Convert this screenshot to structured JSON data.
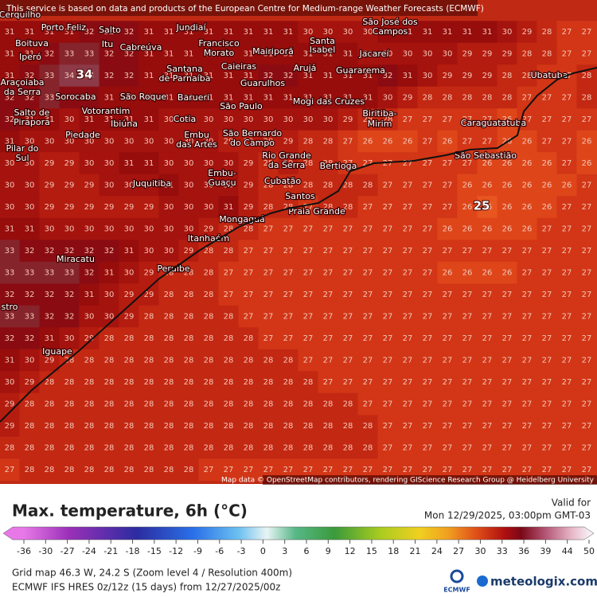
{
  "header": {
    "notice": "This service is based on data and products of the European Centre for Medium-range Weather Forecasts (ECMWF)"
  },
  "map": {
    "attribution": "Map data © OpenStreetMap contributors, rendering GIScience Research Group @ Heidelberg University",
    "extremes": [
      "34",
      "25"
    ],
    "places": [
      "Cerquilho",
      "Porto Feliz",
      "Salto",
      "Jundiaí",
      "São José dos",
      "Campos",
      "Boituva",
      "Itu",
      "Cabreúva",
      "Francisco",
      "Morato",
      "Mairiporã",
      "Santa",
      "Isabel",
      "Jacareí",
      "Iperó",
      "Caieiras",
      "Arujá",
      "Guararema",
      "Santana",
      "de Parnaíba",
      "Ubatuba",
      "Araçoiaba",
      "da Serra",
      "Guarulhos",
      "Sorocaba",
      "São Roque",
      "Barueri",
      "Mogi das Cruzes",
      "São Paulo",
      "Votorantim",
      "Salto de",
      "Pirapora",
      "Ibiúna",
      "Cotia",
      "Biritiba-",
      "Mirim",
      "Caraguatatuba",
      "Embu",
      "das Artes",
      "São Bernardo",
      "do Campo",
      "Piedade",
      "Pilar do",
      "Sul",
      "São Sebastião",
      "Rio Grande",
      "da Serra",
      "Bertioga",
      "Embu-",
      "Guaçu",
      "Juquitiba",
      "Cubatão",
      "Santos",
      "Praia Grande",
      "Mongaguá",
      "Itanhaém",
      "Miracatu",
      "Peruíbe",
      "stro",
      "Iguape"
    ],
    "grid_values": [
      [
        31,
        31,
        31,
        31,
        32,
        32,
        32,
        31,
        31,
        31,
        31,
        31,
        31,
        31,
        31,
        30,
        30,
        30,
        30,
        31,
        31,
        31,
        31,
        31,
        31,
        30,
        29,
        28,
        27,
        27
      ],
      [
        31,
        31,
        32,
        33,
        33,
        32,
        32,
        31,
        31,
        31,
        31,
        31,
        31,
        31,
        31,
        31,
        31,
        31,
        30,
        30,
        30,
        30,
        30,
        29,
        29,
        29,
        28,
        28,
        27,
        27
      ],
      [
        31,
        32,
        33,
        34,
        34,
        32,
        32,
        31,
        31,
        31,
        31,
        31,
        31,
        32,
        32,
        31,
        31,
        31,
        31,
        32,
        31,
        30,
        29,
        29,
        29,
        28,
        28,
        27,
        27,
        28
      ],
      [
        32,
        32,
        33,
        32,
        32,
        31,
        31,
        31,
        31,
        31,
        31,
        31,
        31,
        31,
        31,
        31,
        31,
        31,
        31,
        30,
        29,
        28,
        28,
        28,
        28,
        28,
        27,
        27,
        27,
        28
      ],
      [
        32,
        31,
        31,
        30,
        31,
        31,
        31,
        31,
        30,
        30,
        30,
        30,
        30,
        30,
        30,
        30,
        30,
        29,
        28,
        28,
        27,
        27,
        27,
        27,
        27,
        26,
        27,
        27,
        27,
        27
      ],
      [
        31,
        30,
        30,
        30,
        30,
        30,
        30,
        30,
        30,
        30,
        30,
        29,
        29,
        29,
        29,
        28,
        28,
        27,
        26,
        26,
        26,
        27,
        26,
        27,
        27,
        26,
        26,
        27,
        27,
        26
      ],
      [
        30,
        30,
        29,
        29,
        30,
        30,
        31,
        31,
        30,
        30,
        30,
        30,
        29,
        28,
        29,
        28,
        28,
        27,
        27,
        27,
        27,
        27,
        27,
        27,
        26,
        26,
        26,
        26,
        27,
        26
      ],
      [
        30,
        30,
        29,
        29,
        29,
        30,
        30,
        30,
        31,
        30,
        30,
        30,
        29,
        28,
        28,
        28,
        28,
        28,
        28,
        27,
        27,
        27,
        27,
        26,
        26,
        26,
        26,
        26,
        26,
        27
      ],
      [
        30,
        30,
        29,
        29,
        29,
        29,
        29,
        29,
        30,
        30,
        30,
        31,
        29,
        28,
        28,
        27,
        28,
        28,
        27,
        27,
        27,
        27,
        27,
        26,
        25,
        26,
        26,
        26,
        27,
        27
      ],
      [
        31,
        31,
        30,
        30,
        30,
        30,
        30,
        30,
        30,
        30,
        29,
        28,
        28,
        27,
        27,
        27,
        27,
        27,
        27,
        27,
        27,
        27,
        26,
        26,
        26,
        26,
        26,
        27,
        27,
        27
      ],
      [
        33,
        32,
        32,
        32,
        32,
        32,
        31,
        30,
        30,
        29,
        28,
        28,
        27,
        27,
        27,
        27,
        27,
        27,
        27,
        27,
        27,
        27,
        27,
        27,
        27,
        27,
        27,
        27,
        27,
        27
      ],
      [
        33,
        33,
        33,
        33,
        32,
        31,
        30,
        29,
        28,
        28,
        28,
        27,
        27,
        27,
        27,
        27,
        27,
        27,
        27,
        27,
        27,
        27,
        26,
        26,
        26,
        26,
        27,
        27,
        27,
        27
      ],
      [
        32,
        32,
        32,
        32,
        31,
        30,
        29,
        29,
        28,
        28,
        28,
        27,
        27,
        27,
        27,
        27,
        27,
        27,
        27,
        27,
        27,
        27,
        27,
        27,
        27,
        27,
        27,
        27,
        27,
        27
      ],
      [
        33,
        33,
        32,
        32,
        30,
        30,
        29,
        28,
        28,
        28,
        28,
        28,
        27,
        27,
        27,
        27,
        27,
        27,
        27,
        27,
        27,
        27,
        27,
        27,
        27,
        27,
        27,
        27,
        27,
        27
      ],
      [
        32,
        32,
        31,
        30,
        29,
        28,
        28,
        28,
        28,
        28,
        28,
        28,
        28,
        27,
        27,
        27,
        27,
        27,
        27,
        27,
        27,
        27,
        27,
        27,
        27,
        27,
        27,
        27,
        27,
        27
      ],
      [
        31,
        30,
        29,
        28,
        28,
        28,
        28,
        28,
        28,
        28,
        28,
        28,
        28,
        28,
        28,
        27,
        27,
        27,
        27,
        27,
        27,
        27,
        27,
        27,
        27,
        27,
        27,
        27,
        27,
        27
      ],
      [
        30,
        29,
        28,
        28,
        28,
        28,
        28,
        28,
        28,
        28,
        28,
        28,
        28,
        28,
        28,
        28,
        27,
        27,
        27,
        27,
        27,
        27,
        27,
        27,
        27,
        27,
        27,
        27,
        27,
        27
      ],
      [
        29,
        28,
        28,
        28,
        28,
        28,
        28,
        28,
        28,
        28,
        28,
        28,
        28,
        28,
        28,
        28,
        28,
        28,
        27,
        27,
        27,
        27,
        27,
        27,
        27,
        27,
        27,
        27,
        27,
        27
      ],
      [
        29,
        28,
        28,
        28,
        28,
        28,
        28,
        28,
        28,
        28,
        28,
        28,
        28,
        28,
        28,
        28,
        28,
        28,
        28,
        27,
        27,
        27,
        27,
        27,
        27,
        27,
        27,
        27,
        27,
        27
      ],
      [
        28,
        28,
        28,
        28,
        28,
        28,
        28,
        28,
        28,
        28,
        28,
        28,
        28,
        28,
        28,
        28,
        28,
        28,
        28,
        27,
        27,
        27,
        27,
        27,
        27,
        27,
        27,
        27,
        27,
        27
      ],
      [
        27,
        28,
        28,
        28,
        28,
        28,
        28,
        28,
        28,
        28,
        27,
        27,
        27,
        27,
        27,
        27,
        27,
        27,
        27,
        27,
        27,
        27,
        27,
        27,
        27,
        27,
        27,
        27,
        27,
        27
      ]
    ]
  },
  "footer": {
    "title": "Max. temperature, 6h (°C)",
    "valid_label": "Valid for",
    "valid_time": "Mon 12/29/2025, 03:00pm GMT-03",
    "scale_ticks": [
      -36,
      -30,
      -27,
      -24,
      -21,
      -18,
      -15,
      -12,
      -9,
      -6,
      -3,
      0,
      3,
      6,
      9,
      12,
      15,
      18,
      21,
      24,
      27,
      30,
      33,
      36,
      39,
      44,
      50
    ],
    "grid_info": "Grid map 46.3 W, 24.2 S (Zoom level 4 / Resolution 400m)",
    "model_info": "ECMWF IFS HRES 0z/12z (15 days) from 12/27/2025/00z",
    "ecmwf": "ECMWF",
    "brand": "meteologix.com"
  }
}
